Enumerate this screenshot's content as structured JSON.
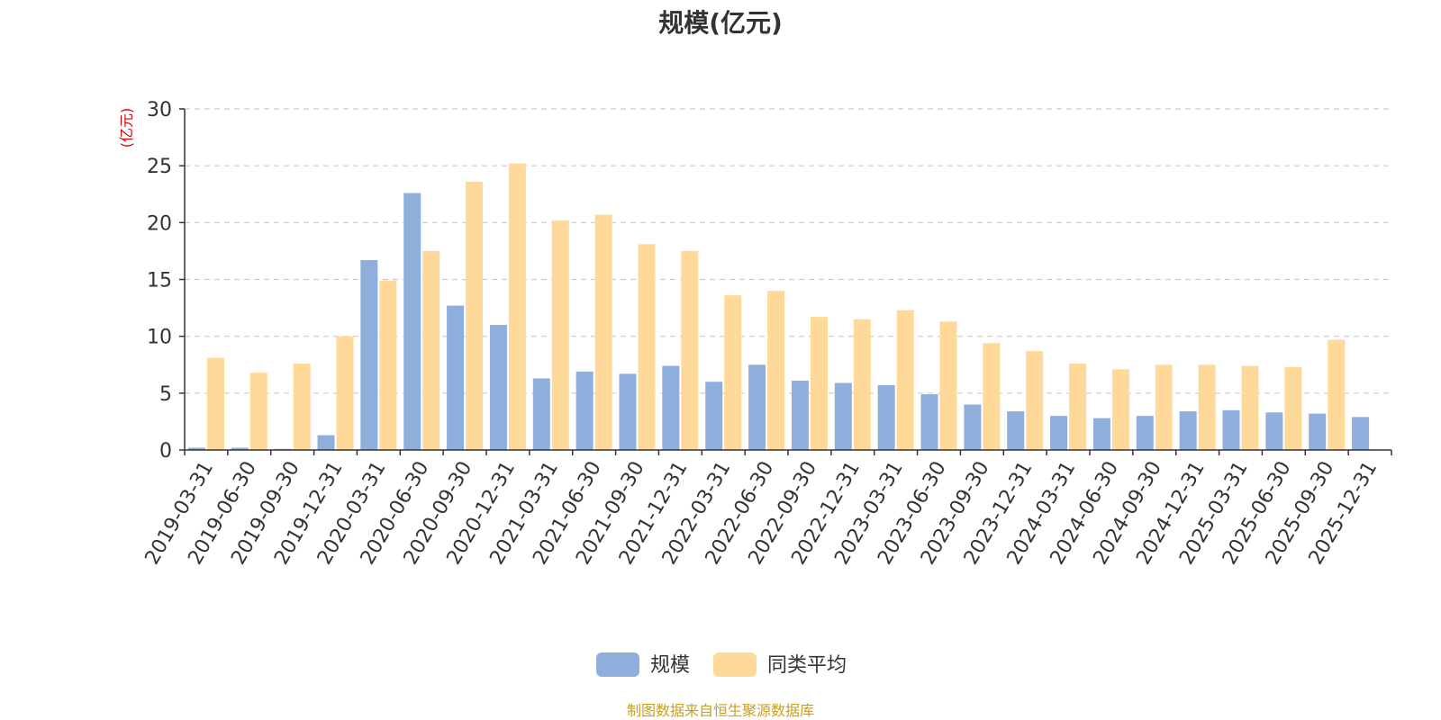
{
  "chart_data": {
    "type": "bar",
    "title": "规模(亿元)",
    "ylabel": "(亿元)",
    "xlabel": "",
    "ylim": [
      0,
      30
    ],
    "yticks": [
      0,
      5,
      10,
      15,
      20,
      25,
      30
    ],
    "grid": true,
    "legend_position": "bottom",
    "categories": [
      "2019-03-31",
      "2019-06-30",
      "2019-09-30",
      "2019-12-31",
      "2020-03-31",
      "2020-06-30",
      "2020-09-30",
      "2020-12-31",
      "2021-03-31",
      "2021-06-30",
      "2021-09-30",
      "2021-12-31",
      "2022-03-31",
      "2022-06-30",
      "2022-09-30",
      "2022-12-31",
      "2023-03-31",
      "2023-06-30",
      "2023-09-30",
      "2023-12-31",
      "2024-03-31",
      "2024-06-30",
      "2024-09-30",
      "2024-12-31",
      "2025-03-31",
      "2025-06-30",
      "2025-09-30",
      "2025-12-31"
    ],
    "series": [
      {
        "name": "规模",
        "color": "#8eaedb",
        "values": [
          0.2,
          0.2,
          0.1,
          1.3,
          16.7,
          22.6,
          12.7,
          11.0,
          6.3,
          6.9,
          6.7,
          7.4,
          6.0,
          7.5,
          6.1,
          5.9,
          5.7,
          4.9,
          4.0,
          3.4,
          3.0,
          2.8,
          3.0,
          3.4,
          3.5,
          3.3,
          3.2,
          2.9
        ]
      },
      {
        "name": "同类平均",
        "color": "#ffd99a",
        "values": [
          8.1,
          6.8,
          7.6,
          10.0,
          14.9,
          17.5,
          23.6,
          25.2,
          20.2,
          20.7,
          18.1,
          17.5,
          13.6,
          14.0,
          11.7,
          11.5,
          12.3,
          11.3,
          9.4,
          8.7,
          7.6,
          7.1,
          7.5,
          7.5,
          7.4,
          7.3,
          9.7,
          null
        ]
      }
    ]
  },
  "legend": {
    "items": [
      {
        "label": "规模",
        "color": "#8eaedb"
      },
      {
        "label": "同类平均",
        "color": "#ffd99a"
      }
    ]
  },
  "source_note": "制图数据来自恒生聚源数据库",
  "colors": {
    "axis": "#333333",
    "grid": "#cccccc",
    "ylabel": "#e00000",
    "source": "#c8a020",
    "text": "#333333"
  }
}
